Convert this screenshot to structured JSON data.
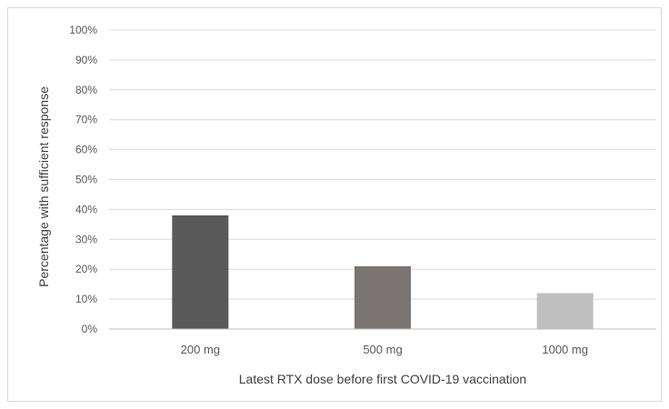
{
  "chart_data": {
    "type": "bar",
    "title": "",
    "categories": [
      "200 mg",
      "500 mg",
      "1000 mg"
    ],
    "values": [
      38,
      21,
      12
    ],
    "xlabel": "Latest RTX dose before first COVID-19 vaccination",
    "ylabel": "Percentage with sufficient response",
    "ylim": [
      0,
      100
    ],
    "yticks": [
      "0%",
      "10%",
      "20%",
      "30%",
      "40%",
      "50%",
      "60%",
      "70%",
      "80%",
      "90%",
      "100%"
    ],
    "grid": true,
    "legend": "none",
    "bar_colors": [
      "#595959",
      "#7a7473",
      "#bfbfbf"
    ],
    "gridline_color": "#d9d9d9"
  }
}
